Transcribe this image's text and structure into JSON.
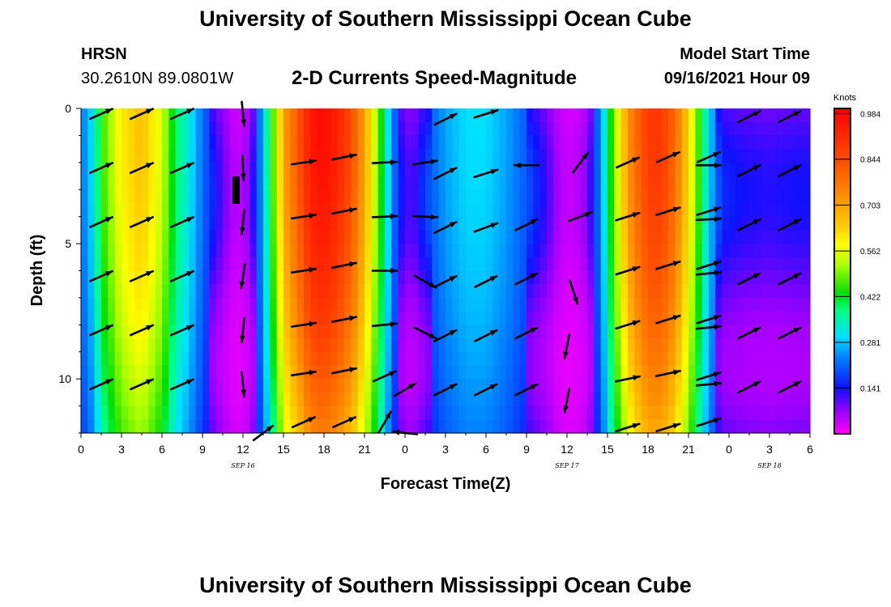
{
  "page": {
    "title_top": "University of Southern Mississippi Ocean Cube",
    "title_bottom": "University of Southern Mississippi Ocean Cube",
    "station": {
      "code": "HRSN",
      "coords": "30.2610N  89.0801W"
    },
    "model": {
      "label": "Model Start Time",
      "time": "09/16/2021 Hour 09"
    }
  },
  "chart_data": {
    "type": "heatmap",
    "title": "2-D Currents Speed-Magnitude",
    "xlabel": "Forecast Time(Z)",
    "ylabel": "Depth (ft)",
    "x_range_hours": [
      0,
      54
    ],
    "y_range_ft": [
      0,
      12
    ],
    "y_inverted": true,
    "x_ticks": [
      {
        "h": 0,
        "label": "0"
      },
      {
        "h": 3,
        "label": "3"
      },
      {
        "h": 6,
        "label": "6"
      },
      {
        "h": 9,
        "label": "9"
      },
      {
        "h": 12,
        "label": "12"
      },
      {
        "h": 15,
        "label": "15"
      },
      {
        "h": 18,
        "label": "18"
      },
      {
        "h": 21,
        "label": "21"
      },
      {
        "h": 24,
        "label": "0"
      },
      {
        "h": 27,
        "label": "3"
      },
      {
        "h": 30,
        "label": "6"
      },
      {
        "h": 33,
        "label": "9"
      },
      {
        "h": 36,
        "label": "12"
      },
      {
        "h": 39,
        "label": "15"
      },
      {
        "h": 42,
        "label": "18"
      },
      {
        "h": 45,
        "label": "21"
      },
      {
        "h": 48,
        "label": "0"
      },
      {
        "h": 51,
        "label": "3"
      },
      {
        "h": 54,
        "label": "6"
      }
    ],
    "date_labels": [
      {
        "h": 12,
        "label": "SEP 16"
      },
      {
        "h": 36,
        "label": "SEP 17"
      },
      {
        "h": 51,
        "label": "SEP 18"
      }
    ],
    "y_ticks": [
      {
        "d": 0,
        "label": "0"
      },
      {
        "d": 5,
        "label": "5"
      },
      {
        "d": 10,
        "label": "10"
      }
    ],
    "colorbar": {
      "unit": "Knots",
      "min": 0.0,
      "max": 1.0,
      "labels": [
        "0.984",
        "0.844",
        "0.703",
        "0.562",
        "0.422",
        "0.281",
        "0.141"
      ],
      "label_values": [
        0.984,
        0.844,
        0.703,
        0.562,
        0.422,
        0.281,
        0.141
      ]
    },
    "speed_profile_hours": [
      0,
      1,
      1.5,
      3,
      4.5,
      6,
      7,
      8,
      9,
      10,
      10.5,
      11.5,
      12.5,
      13.5,
      14.5,
      15,
      16,
      17,
      18,
      19,
      20,
      21,
      22,
      22.8,
      23.5,
      24.5,
      25.5,
      27,
      28.5,
      30,
      31.5,
      33,
      34.5,
      35.5,
      36.5,
      37.5,
      38.5,
      39.5,
      40.5,
      41.5,
      42.5,
      43.5,
      44.5,
      45.5,
      46.5,
      47.5,
      49,
      51,
      53,
      54
    ],
    "speed_profile_values": [
      0.22,
      0.32,
      0.45,
      0.6,
      0.66,
      0.55,
      0.4,
      0.32,
      0.22,
      0.14,
      0.1,
      0.04,
      0.08,
      0.28,
      0.55,
      0.7,
      0.82,
      0.95,
      0.98,
      0.93,
      0.85,
      0.7,
      0.5,
      0.3,
      0.16,
      0.1,
      0.18,
      0.26,
      0.3,
      0.3,
      0.26,
      0.2,
      0.12,
      0.05,
      0.04,
      0.08,
      0.25,
      0.5,
      0.72,
      0.84,
      0.9,
      0.85,
      0.72,
      0.52,
      0.3,
      0.16,
      0.14,
      0.13,
      0.14,
      0.14
    ],
    "vectors": [
      {
        "h": 1.5,
        "d": 0.2,
        "u": 0.9,
        "v": 0.4
      },
      {
        "h": 4.5,
        "d": 0.2,
        "u": 0.9,
        "v": 0.4
      },
      {
        "h": 7.5,
        "d": 0.2,
        "u": 0.9,
        "v": 0.4
      },
      {
        "h": 1.5,
        "d": 2.2,
        "u": 0.9,
        "v": 0.4
      },
      {
        "h": 4.5,
        "d": 2.2,
        "u": 0.9,
        "v": 0.4
      },
      {
        "h": 7.5,
        "d": 2.2,
        "u": 0.9,
        "v": 0.4
      },
      {
        "h": 1.5,
        "d": 4.2,
        "u": 0.9,
        "v": 0.4
      },
      {
        "h": 4.5,
        "d": 4.2,
        "u": 0.9,
        "v": 0.4
      },
      {
        "h": 7.5,
        "d": 4.2,
        "u": 0.9,
        "v": 0.4
      },
      {
        "h": 1.5,
        "d": 6.2,
        "u": 0.9,
        "v": 0.4
      },
      {
        "h": 4.5,
        "d": 6.2,
        "u": 0.9,
        "v": 0.4
      },
      {
        "h": 7.5,
        "d": 6.2,
        "u": 0.9,
        "v": 0.4
      },
      {
        "h": 1.5,
        "d": 8.2,
        "u": 0.9,
        "v": 0.4
      },
      {
        "h": 4.5,
        "d": 8.2,
        "u": 0.9,
        "v": 0.4
      },
      {
        "h": 7.5,
        "d": 8.2,
        "u": 0.9,
        "v": 0.4
      },
      {
        "h": 1.5,
        "d": 10.2,
        "u": 0.9,
        "v": 0.4
      },
      {
        "h": 4.5,
        "d": 10.2,
        "u": 0.9,
        "v": 0.4
      },
      {
        "h": 7.5,
        "d": 10.2,
        "u": 0.9,
        "v": 0.4
      },
      {
        "h": 12,
        "d": 0.2,
        "u": 0.1,
        "v": -1
      },
      {
        "h": 12,
        "d": 2.2,
        "u": 0.05,
        "v": -1
      },
      {
        "h": 12,
        "d": 4.2,
        "u": -0.1,
        "v": -1
      },
      {
        "h": 12,
        "d": 6.2,
        "u": -0.15,
        "v": -1
      },
      {
        "h": 12,
        "d": 8.2,
        "u": -0.1,
        "v": -1
      },
      {
        "h": 12,
        "d": 10.2,
        "u": 0.1,
        "v": -1
      },
      {
        "h": 13.5,
        "d": 12,
        "u": 0.8,
        "v": 0.6
      },
      {
        "h": 16.5,
        "d": 2.0,
        "u": 1,
        "v": 0.15
      },
      {
        "h": 19.5,
        "d": 1.8,
        "u": 1,
        "v": 0.2
      },
      {
        "h": 22.5,
        "d": 2.0,
        "u": 1,
        "v": 0.05
      },
      {
        "h": 25.5,
        "d": 2.0,
        "u": 1,
        "v": 0.15
      },
      {
        "h": 16.5,
        "d": 4.0,
        "u": 1,
        "v": 0.15
      },
      {
        "h": 19.5,
        "d": 3.8,
        "u": 1,
        "v": 0.2
      },
      {
        "h": 22.5,
        "d": 4.0,
        "u": 1,
        "v": 0.05
      },
      {
        "h": 25.5,
        "d": 4.0,
        "u": 1,
        "v": -0.05
      },
      {
        "h": 16.5,
        "d": 6.0,
        "u": 1,
        "v": 0.15
      },
      {
        "h": 19.5,
        "d": 5.8,
        "u": 1,
        "v": 0.2
      },
      {
        "h": 22.5,
        "d": 6.0,
        "u": 1,
        "v": 0.0
      },
      {
        "h": 25.5,
        "d": 6.4,
        "u": 0.9,
        "v": -0.5
      },
      {
        "h": 16.5,
        "d": 8.0,
        "u": 1,
        "v": 0.15
      },
      {
        "h": 19.5,
        "d": 7.8,
        "u": 1,
        "v": 0.2
      },
      {
        "h": 22.5,
        "d": 8.0,
        "u": 1,
        "v": 0.1
      },
      {
        "h": 25.5,
        "d": 8.3,
        "u": 0.9,
        "v": -0.45
      },
      {
        "h": 16.5,
        "d": 9.8,
        "u": 1,
        "v": 0.15
      },
      {
        "h": 19.5,
        "d": 9.7,
        "u": 1,
        "v": 0.2
      },
      {
        "h": 22.5,
        "d": 9.9,
        "u": 0.9,
        "v": 0.4
      },
      {
        "h": 16.5,
        "d": 11.6,
        "u": 0.9,
        "v": 0.4
      },
      {
        "h": 19.5,
        "d": 11.6,
        "u": 0.9,
        "v": 0.4
      },
      {
        "h": 22.5,
        "d": 11.6,
        "u": 0.5,
        "v": 0.85
      },
      {
        "h": 24,
        "d": 10.4,
        "u": 0.85,
        "v": 0.5
      },
      {
        "h": 24,
        "d": 12.0,
        "u": -1,
        "v": 0.1
      },
      {
        "h": 27,
        "d": 0.4,
        "u": 0.9,
        "v": 0.45
      },
      {
        "h": 30,
        "d": 0.2,
        "u": 0.95,
        "v": 0.3
      },
      {
        "h": 27,
        "d": 2.4,
        "u": 0.9,
        "v": 0.45
      },
      {
        "h": 30,
        "d": 2.4,
        "u": 0.95,
        "v": 0.3
      },
      {
        "h": 33,
        "d": 2.1,
        "u": -1,
        "v": 0.0
      },
      {
        "h": 27,
        "d": 4.4,
        "u": 0.9,
        "v": 0.45
      },
      {
        "h": 30,
        "d": 4.4,
        "u": 0.95,
        "v": 0.35
      },
      {
        "h": 33,
        "d": 4.3,
        "u": 0.9,
        "v": 0.45
      },
      {
        "h": 27,
        "d": 6.4,
        "u": 0.9,
        "v": 0.45
      },
      {
        "h": 30,
        "d": 6.4,
        "u": 0.9,
        "v": 0.45
      },
      {
        "h": 33,
        "d": 6.3,
        "u": 0.9,
        "v": 0.45
      },
      {
        "h": 27,
        "d": 8.4,
        "u": 0.9,
        "v": 0.45
      },
      {
        "h": 30,
        "d": 8.4,
        "u": 0.9,
        "v": 0.45
      },
      {
        "h": 33,
        "d": 8.3,
        "u": 0.9,
        "v": 0.45
      },
      {
        "h": 27,
        "d": 10.4,
        "u": 0.9,
        "v": 0.45
      },
      {
        "h": 30,
        "d": 10.4,
        "u": 0.9,
        "v": 0.45
      },
      {
        "h": 33,
        "d": 10.4,
        "u": 0.9,
        "v": 0.45
      },
      {
        "h": 37,
        "d": 2.0,
        "u": 0.6,
        "v": 0.8
      },
      {
        "h": 37,
        "d": 4.0,
        "u": 0.9,
        "v": 0.35
      },
      {
        "h": 36.5,
        "d": 6.8,
        "u": 0.3,
        "v": -0.95
      },
      {
        "h": 36,
        "d": 8.8,
        "u": -0.2,
        "v": -1
      },
      {
        "h": 36,
        "d": 10.8,
        "u": -0.2,
        "v": -1
      },
      {
        "h": 40.5,
        "d": 2.0,
        "u": 0.9,
        "v": 0.4
      },
      {
        "h": 43.5,
        "d": 1.8,
        "u": 0.9,
        "v": 0.4
      },
      {
        "h": 46.5,
        "d": 1.8,
        "u": 0.9,
        "v": 0.4
      },
      {
        "h": 40.5,
        "d": 4.0,
        "u": 0.95,
        "v": 0.3
      },
      {
        "h": 43.5,
        "d": 3.8,
        "u": 0.95,
        "v": 0.3
      },
      {
        "h": 46.5,
        "d": 3.8,
        "u": 0.95,
        "v": 0.3
      },
      {
        "h": 40.5,
        "d": 6.0,
        "u": 0.95,
        "v": 0.3
      },
      {
        "h": 43.5,
        "d": 5.8,
        "u": 0.95,
        "v": 0.3
      },
      {
        "h": 46.5,
        "d": 5.8,
        "u": 0.95,
        "v": 0.3
      },
      {
        "h": 40.5,
        "d": 8.0,
        "u": 0.95,
        "v": 0.3
      },
      {
        "h": 43.5,
        "d": 7.8,
        "u": 0.95,
        "v": 0.3
      },
      {
        "h": 46.5,
        "d": 7.8,
        "u": 0.95,
        "v": 0.3
      },
      {
        "h": 40.5,
        "d": 10.0,
        "u": 0.95,
        "v": 0.2
      },
      {
        "h": 43.5,
        "d": 9.8,
        "u": 0.95,
        "v": 0.2
      },
      {
        "h": 46.5,
        "d": 9.9,
        "u": 0.95,
        "v": 0.3
      },
      {
        "h": 40.5,
        "d": 11.8,
        "u": 0.95,
        "v": 0.3
      },
      {
        "h": 43.5,
        "d": 11.8,
        "u": 0.95,
        "v": 0.3
      },
      {
        "h": 46.5,
        "d": 11.6,
        "u": 0.95,
        "v": 0.3
      },
      {
        "h": 46.5,
        "d": 2.1,
        "u": 1,
        "v": 0.0
      },
      {
        "h": 46.5,
        "d": 4.1,
        "u": 1,
        "v": 0.05
      },
      {
        "h": 46.5,
        "d": 6.1,
        "u": 1,
        "v": 0.1
      },
      {
        "h": 46.5,
        "d": 8.1,
        "u": 1,
        "v": 0.1
      },
      {
        "h": 46.5,
        "d": 10.2,
        "u": 1,
        "v": 0.1
      },
      {
        "h": 49.5,
        "d": 0.3,
        "u": 0.9,
        "v": 0.45
      },
      {
        "h": 52.5,
        "d": 0.3,
        "u": 0.9,
        "v": 0.45
      },
      {
        "h": 49.5,
        "d": 2.3,
        "u": 0.9,
        "v": 0.45
      },
      {
        "h": 52.5,
        "d": 2.3,
        "u": 0.9,
        "v": 0.45
      },
      {
        "h": 49.5,
        "d": 4.3,
        "u": 0.9,
        "v": 0.45
      },
      {
        "h": 52.5,
        "d": 4.3,
        "u": 0.9,
        "v": 0.45
      },
      {
        "h": 49.5,
        "d": 6.3,
        "u": 0.9,
        "v": 0.45
      },
      {
        "h": 52.5,
        "d": 6.3,
        "u": 0.9,
        "v": 0.45
      },
      {
        "h": 49.5,
        "d": 8.3,
        "u": 0.9,
        "v": 0.45
      },
      {
        "h": 52.5,
        "d": 8.3,
        "u": 0.9,
        "v": 0.45
      },
      {
        "h": 49.5,
        "d": 10.3,
        "u": 0.9,
        "v": 0.45
      },
      {
        "h": 52.5,
        "d": 10.3,
        "u": 0.9,
        "v": 0.45
      }
    ],
    "colors": {
      "arrow": "#000000",
      "axis": "#000000",
      "background": "#ffffff"
    }
  }
}
